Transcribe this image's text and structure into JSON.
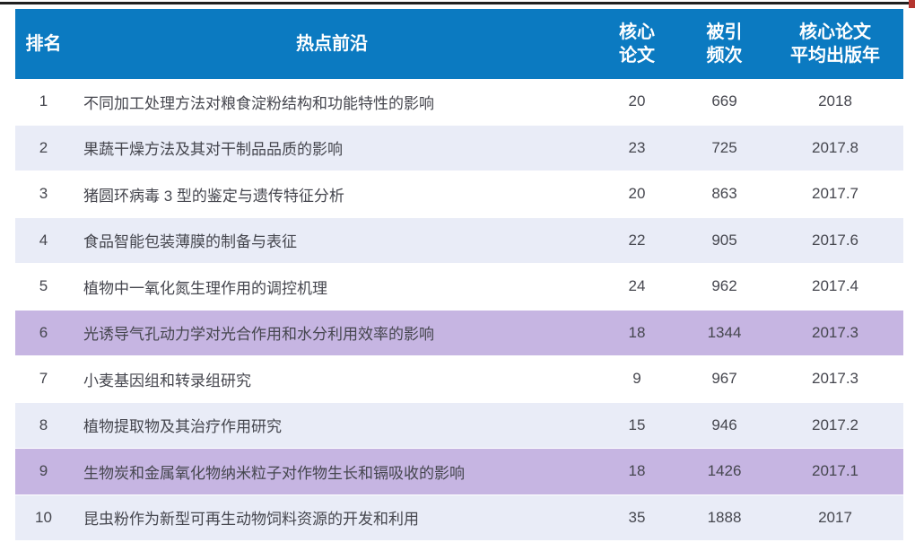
{
  "colors": {
    "header_bg": "#0b7ac1",
    "header_text": "#ffffff",
    "row_alt_bg": "#e9ecf7",
    "row_highlight_bg": "#c6b5e2",
    "body_text": "#45464e",
    "top_line": "#202020",
    "corner_accent": "#b5352f"
  },
  "header": {
    "rank": "排名",
    "topic": "热点前沿",
    "core_papers": "核心\n论文",
    "citations": "被引\n频次",
    "avg_year": "核心论文\n平均出版年"
  },
  "chart_data": {
    "type": "table",
    "columns": [
      "排名",
      "热点前沿",
      "核心论文",
      "被引频次",
      "核心论文平均出版年"
    ],
    "highlighted_ranks": [
      6,
      9
    ],
    "rows": [
      {
        "rank": "1",
        "topic": "不同加工处理方法对粮食淀粉结构和功能特性的影响",
        "core_papers": "20",
        "citations": "669",
        "avg_year": "2018",
        "highlight": "white"
      },
      {
        "rank": "2",
        "topic": "果蔬干燥方法及其对干制品品质的影响",
        "core_papers": "23",
        "citations": "725",
        "avg_year": "2017.8",
        "highlight": "alt"
      },
      {
        "rank": "3",
        "topic": "猪圆环病毒 3 型的鉴定与遗传特征分析",
        "core_papers": "20",
        "citations": "863",
        "avg_year": "2017.7",
        "highlight": "white"
      },
      {
        "rank": "4",
        "topic": "食品智能包装薄膜的制备与表征",
        "core_papers": "22",
        "citations": "905",
        "avg_year": "2017.6",
        "highlight": "alt"
      },
      {
        "rank": "5",
        "topic": "植物中一氧化氮生理作用的调控机理",
        "core_papers": "24",
        "citations": "962",
        "avg_year": "2017.4",
        "highlight": "white"
      },
      {
        "rank": "6",
        "topic": "光诱导气孔动力学对光合作用和水分利用效率的影响",
        "core_papers": "18",
        "citations": "1344",
        "avg_year": "2017.3",
        "highlight": "purple"
      },
      {
        "rank": "7",
        "topic": "小麦基因组和转录组研究",
        "core_papers": "9",
        "citations": "967",
        "avg_year": "2017.3",
        "highlight": "white"
      },
      {
        "rank": "8",
        "topic": "植物提取物及其治疗作用研究",
        "core_papers": "15",
        "citations": "946",
        "avg_year": "2017.2",
        "highlight": "alt"
      },
      {
        "rank": "9",
        "topic": "生物炭和金属氧化物纳米粒子对作物生长和镉吸收的影响",
        "core_papers": "18",
        "citations": "1426",
        "avg_year": "2017.1",
        "highlight": "purple"
      },
      {
        "rank": "10",
        "topic": "昆虫粉作为新型可再生动物饲料资源的开发和利用",
        "core_papers": "35",
        "citations": "1888",
        "avg_year": "2017",
        "highlight": "alt"
      }
    ]
  }
}
